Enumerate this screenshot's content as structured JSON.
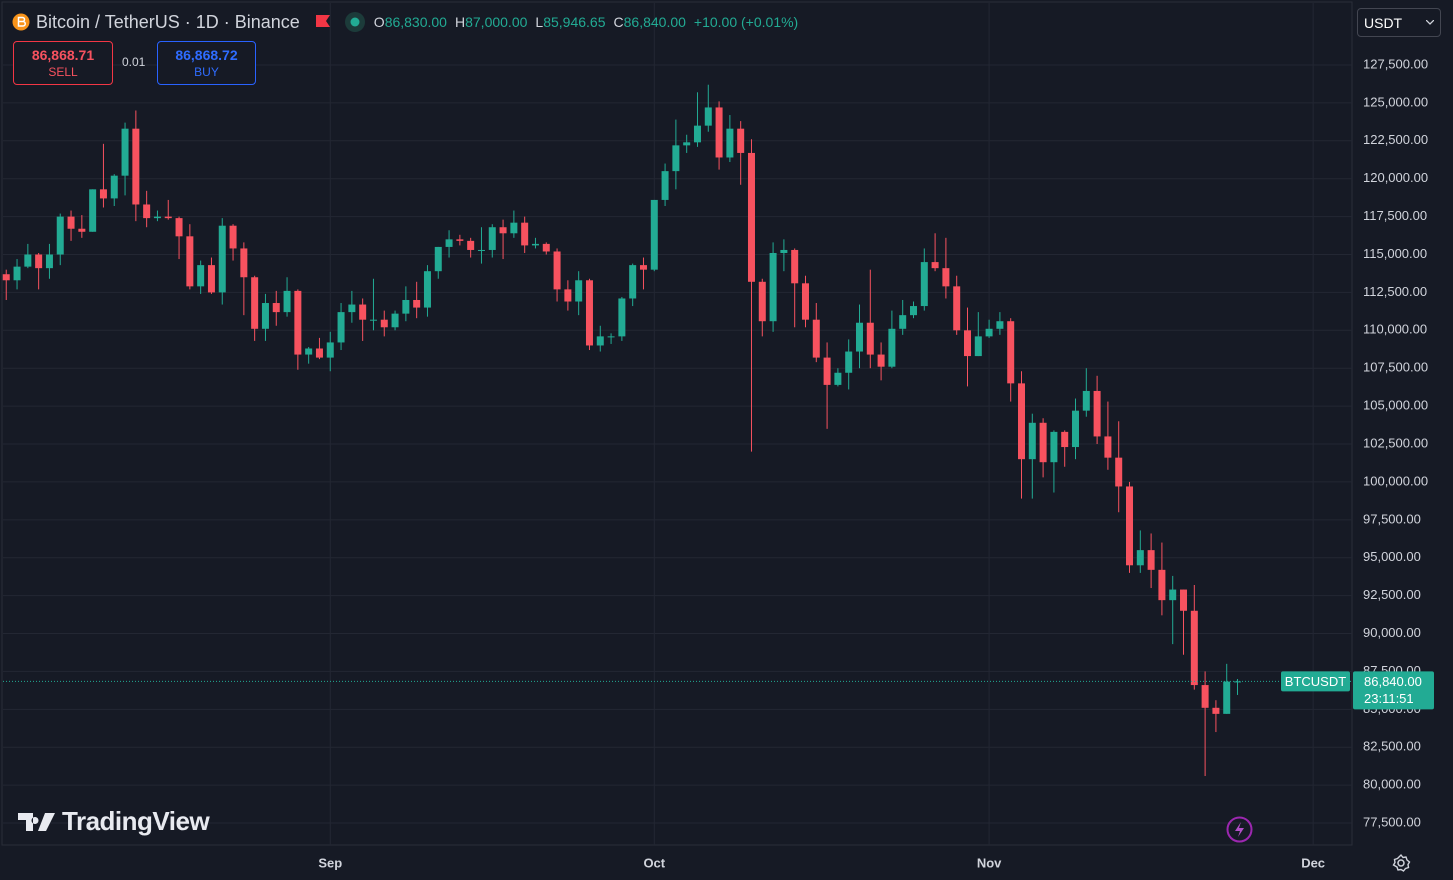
{
  "chart_data": {
    "type": "candlestick",
    "symbol_title": "Bitcoin / TetherUS · 1D · Binance",
    "legend": {
      "open_label": "O",
      "open": "86,830.00",
      "high_label": "H",
      "high": "87,000.00",
      "low_label": "L",
      "low": "85,946.65",
      "close_label": "C",
      "close": "86,840.00",
      "change": "+10.00 (+0.01%)"
    },
    "x": [
      1,
      2,
      3,
      4,
      5,
      6,
      7,
      8,
      9,
      10,
      11,
      12,
      13,
      14,
      15,
      16,
      17,
      18,
      19,
      20,
      21,
      22,
      23,
      24,
      25,
      26,
      27,
      28,
      29,
      30,
      31,
      32,
      33,
      34,
      35,
      36,
      37,
      38,
      39,
      40,
      41,
      42,
      43,
      44,
      45,
      46,
      47,
      48,
      49,
      50,
      51,
      52,
      53,
      54,
      55,
      56,
      57,
      58,
      59,
      60,
      61,
      62,
      63,
      64,
      65,
      66,
      67,
      68,
      69,
      70,
      71,
      72,
      73,
      74,
      75,
      76,
      77,
      78,
      79,
      80,
      81,
      82,
      83,
      84,
      85,
      86,
      87,
      88,
      89,
      90,
      91,
      92,
      93,
      94,
      95,
      96,
      97,
      98,
      99,
      100,
      101,
      102,
      103,
      104,
      105,
      106,
      107,
      108,
      109,
      110,
      111,
      112,
      113,
      114,
      115
    ],
    "open": [
      113700,
      113300,
      114200,
      115000,
      114100,
      115000,
      117500,
      116700,
      116500,
      119300,
      118700,
      120200,
      123300,
      118300,
      117400,
      117500,
      117400,
      116200,
      112900,
      114300,
      112500,
      116900,
      115400,
      113500,
      110100,
      111800,
      111200,
      112600,
      108400,
      108800,
      108200,
      109200,
      111200,
      111700,
      110700,
      110700,
      110200,
      111100,
      112000,
      111500,
      113900,
      115500,
      116000,
      115900,
      115300,
      115300,
      116800,
      116400,
      117100,
      115600,
      115700,
      115200,
      112700,
      111900,
      113300,
      109000,
      109600,
      109600,
      112100,
      114300,
      114000,
      118600,
      120500,
      122200,
      122400,
      123500,
      124700,
      121400,
      123300,
      121700,
      113200,
      110600,
      115100,
      115300,
      113100,
      110700,
      108200,
      106400,
      107200,
      108600,
      110500,
      108400,
      107600,
      110100,
      111000,
      111600,
      114500,
      114100,
      112900,
      110000,
      108300,
      109600,
      110100,
      110600,
      106500,
      101500,
      103900,
      101300,
      103300,
      102300,
      104700,
      106000,
      103000,
      101600,
      99700,
      94500,
      95500,
      94200,
      92200,
      92900,
      91500,
      86600,
      85100,
      84700,
      86830
    ],
    "high": [
      114000,
      114700,
      115700,
      115100,
      115700,
      117700,
      117900,
      117600,
      119300,
      122300,
      120300,
      123700,
      124500,
      119200,
      117900,
      118600,
      117500,
      117000,
      114600,
      114800,
      117400,
      117000,
      115800,
      113600,
      112400,
      112600,
      113500,
      112700,
      108900,
      109500,
      109900,
      111800,
      112600,
      112100,
      113400,
      111300,
      111300,
      112900,
      113200,
      114300,
      115500,
      116600,
      116300,
      116100,
      116800,
      117000,
      117300,
      117900,
      117500,
      116100,
      115800,
      115400,
      113300,
      113900,
      113400,
      110300,
      109800,
      112200,
      114400,
      114800,
      118600,
      121000,
      123900,
      122900,
      125700,
      126200,
      125100,
      124200,
      123800,
      122600,
      113400,
      115800,
      116000,
      115400,
      113600,
      111800,
      109200,
      107500,
      109400,
      111700,
      114000,
      109200,
      111300,
      112000,
      111900,
      115400,
      116400,
      116100,
      113600,
      111500,
      111200,
      110700,
      111200,
      110800,
      107300,
      104500,
      104200,
      103400,
      103400,
      105500,
      107500,
      107000,
      105300,
      104000,
      100000,
      96800,
      96600,
      96000,
      93800,
      92900,
      93200,
      87500,
      85600,
      88000,
      87000
    ],
    "low": [
      112000,
      112700,
      114100,
      112700,
      113400,
      114300,
      115900,
      116100,
      116500,
      118100,
      118200,
      118900,
      117200,
      116800,
      117200,
      117300,
      114700,
      112700,
      112400,
      112400,
      111700,
      114600,
      111000,
      109300,
      109300,
      110300,
      110900,
      107400,
      107800,
      108100,
      107300,
      108700,
      110500,
      109300,
      110000,
      109600,
      110000,
      110600,
      110800,
      110900,
      113400,
      114800,
      115600,
      114800,
      114400,
      114800,
      114700,
      116100,
      115100,
      115400,
      115000,
      111900,
      111300,
      111000,
      108700,
      108600,
      109100,
      109300,
      111600,
      112700,
      113900,
      118200,
      119300,
      121700,
      122100,
      123100,
      120600,
      121100,
      119600,
      102000,
      109600,
      109900,
      113900,
      110200,
      110200,
      107900,
      103500,
      106300,
      106100,
      107500,
      107500,
      106700,
      107500,
      109700,
      110800,
      111300,
      113900,
      112100,
      109700,
      106300,
      108300,
      109500,
      109700,
      105300,
      98900,
      98900,
      100300,
      99300,
      101000,
      101500,
      104300,
      102500,
      100800,
      98000,
      94000,
      94000,
      93000,
      91200,
      89300,
      88600,
      86300,
      80600,
      83500,
      84700,
      85946.65
    ],
    "close": [
      113300,
      114200,
      115000,
      114100,
      115000,
      117500,
      116700,
      116500,
      119300,
      118700,
      120200,
      123300,
      118300,
      117400,
      117500,
      117400,
      116200,
      112900,
      114300,
      112500,
      116900,
      115400,
      113500,
      110100,
      111800,
      111200,
      112600,
      108400,
      108800,
      108200,
      109200,
      111200,
      111700,
      110700,
      110700,
      110200,
      111100,
      112000,
      111500,
      113900,
      115500,
      116000,
      115900,
      115300,
      115300,
      116800,
      116400,
      117100,
      115600,
      115700,
      115200,
      112700,
      111900,
      113300,
      109000,
      109600,
      109600,
      112100,
      114300,
      114000,
      118600,
      120500,
      122200,
      122400,
      123500,
      124700,
      121400,
      123300,
      121700,
      113200,
      110600,
      115100,
      115300,
      113100,
      110700,
      108200,
      106400,
      107200,
      108600,
      110500,
      108400,
      107600,
      110100,
      111000,
      111600,
      114500,
      114100,
      112900,
      110000,
      108300,
      109600,
      110100,
      110600,
      106500,
      101500,
      103900,
      101300,
      103300,
      102300,
      104700,
      106000,
      103000,
      101600,
      99700,
      94500,
      95500,
      94200,
      92200,
      92900,
      91500,
      86600,
      85100,
      84700,
      86830,
      86840
    ],
    "up_color": "#22ab94",
    "down_color": "#f7525f",
    "xlim": [
      0.7,
      125.6
    ],
    "xticks": [
      {
        "value": 31,
        "label": "Sep"
      },
      {
        "value": 61,
        "label": "Oct"
      },
      {
        "value": 92,
        "label": "Nov"
      },
      {
        "value": 122,
        "label": "Dec"
      }
    ],
    "ylim": [
      76050,
      131590
    ],
    "yticks": [
      {
        "value": 77500,
        "label": "77,500.00"
      },
      {
        "value": 80000,
        "label": "80,000.00"
      },
      {
        "value": 82500,
        "label": "82,500.00"
      },
      {
        "value": 85000,
        "label": "85,000.00"
      },
      {
        "value": 87500,
        "label": "87,500.00"
      },
      {
        "value": 90000,
        "label": "90,000.00"
      },
      {
        "value": 92500,
        "label": "92,500.00"
      },
      {
        "value": 95000,
        "label": "95,000.00"
      },
      {
        "value": 97500,
        "label": "97,500.00"
      },
      {
        "value": 100000,
        "label": "100,000.00"
      },
      {
        "value": 102500,
        "label": "102,500.00"
      },
      {
        "value": 105000,
        "label": "105,000.00"
      },
      {
        "value": 107500,
        "label": "107,500.00"
      },
      {
        "value": 110000,
        "label": "110,000.00"
      },
      {
        "value": 112500,
        "label": "112,500.00"
      },
      {
        "value": 115000,
        "label": "115,000.00"
      },
      {
        "value": 117500,
        "label": "117,500.00"
      },
      {
        "value": 120000,
        "label": "120,000.00"
      },
      {
        "value": 122500,
        "label": "122,500.00"
      },
      {
        "value": 125000,
        "label": "125,000.00"
      },
      {
        "value": 127500,
        "label": "127,500.00"
      }
    ],
    "grid": true,
    "last_price": {
      "value": 86840,
      "label": "86,840.00",
      "symbol": "BTCUSDT",
      "countdown": "23:11:51"
    }
  },
  "trade_panel": {
    "sell_price": "86,868.71",
    "sell_label": "SELL",
    "quantity": "0.01",
    "buy_price": "86,868.72",
    "buy_label": "BUY"
  },
  "currency": "USDT",
  "logo": "TradingView"
}
